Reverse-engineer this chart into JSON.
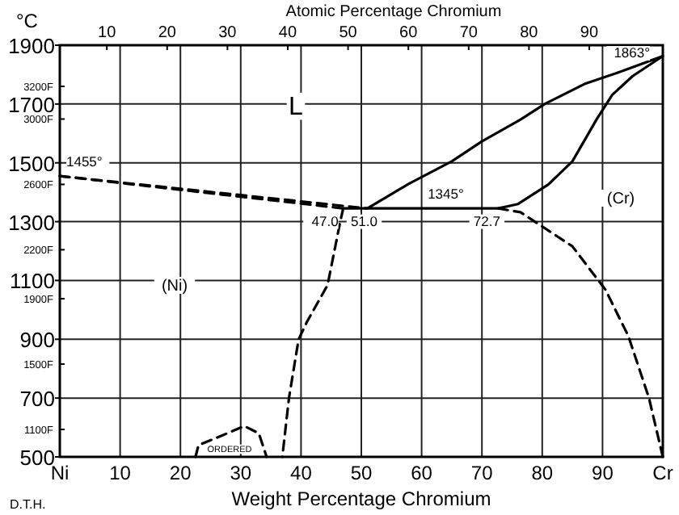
{
  "chart_data": {
    "type": "line",
    "xlabel": "Weight Percentage Chromium",
    "x2label": "Atomic Percentage Chromium",
    "ylabel": "°C",
    "xlim": [
      0,
      100
    ],
    "ylim": [
      500,
      1900
    ],
    "xticks": [
      {
        "value": 0,
        "label": "Ni"
      },
      10,
      20,
      30,
      40,
      50,
      60,
      70,
      80,
      90,
      {
        "value": 100,
        "label": "Cr"
      }
    ],
    "x2lim": [
      2.2,
      102.2
    ],
    "x2ticks": [
      10,
      20,
      30,
      40,
      50,
      60,
      70,
      80,
      90
    ],
    "yticks": [
      500,
      700,
      900,
      1100,
      1300,
      1500,
      1700,
      1900
    ],
    "y2lim": [
      932,
      3452
    ],
    "y2ticks": [
      {
        "value": 1100,
        "label": "1100F"
      },
      {
        "value": 1500,
        "label": "1500F"
      },
      {
        "value": 1900,
        "label": "1900F"
      },
      {
        "value": 2200,
        "label": "2200F"
      },
      {
        "value": 2600,
        "label": "2600F"
      },
      {
        "value": 3000,
        "label": "3000F"
      },
      {
        "value": 3200,
        "label": "3200F"
      }
    ],
    "grid": true,
    "series": [
      {
        "color": "#000000",
        "line_style": "dashed",
        "x": [
          0,
          51
        ],
        "values": [
          1455,
          1345
        ]
      },
      {
        "color": "#000000",
        "line_style": "dashed",
        "x": [
          0,
          47
        ],
        "values": [
          1455,
          1345
        ]
      },
      {
        "color": "#000000",
        "line_style": "solid",
        "x": [
          51,
          58,
          65,
          70,
          76.4,
          80.4,
          87,
          93,
          100,
          95,
          91.6,
          89,
          85,
          81,
          76,
          72.7,
          47
        ],
        "values": [
          1345,
          1430,
          1505,
          1573,
          1647,
          1700,
          1768,
          1810,
          1863,
          1795,
          1731,
          1647,
          1505,
          1426,
          1360,
          1345,
          1345
        ]
      },
      {
        "color": "#000000",
        "line_style": "dashed",
        "x": [
          72.7,
          76.4,
          85,
          90.5,
          94.3,
          97.7,
          100
        ],
        "values": [
          1345,
          1332,
          1216,
          1068,
          910,
          700,
          500
        ]
      },
      {
        "color": "#000000",
        "line_style": "dashed",
        "x": [
          47,
          46.5,
          44.4,
          41,
          39.6,
          38,
          36.9
        ],
        "values": [
          1345,
          1300,
          1084,
          960,
          900,
          700,
          500
        ]
      },
      {
        "color": "#000000",
        "line_style": "dashed",
        "x": [
          22.5,
          23,
          26.6,
          30.6,
          33,
          34.3
        ],
        "values": [
          500,
          540,
          570,
          605,
          580,
          500
        ]
      }
    ],
    "annotations": [
      "L",
      "(Ni)",
      "(Cr)",
      "ORDERED",
      {
        "text": "1455°",
        "x": 0,
        "y": 1455
      },
      {
        "text": "1345°",
        "x": 64,
        "y": 1345
      },
      {
        "text": "1863°",
        "x": 100,
        "y": 1863
      },
      {
        "text": "47.0",
        "x": 47,
        "y": 1345
      },
      {
        "text": "51.0",
        "x": 51,
        "y": 1345
      },
      {
        "text": "72.7",
        "x": 72.7,
        "y": 1345
      },
      "D.T.H."
    ]
  }
}
